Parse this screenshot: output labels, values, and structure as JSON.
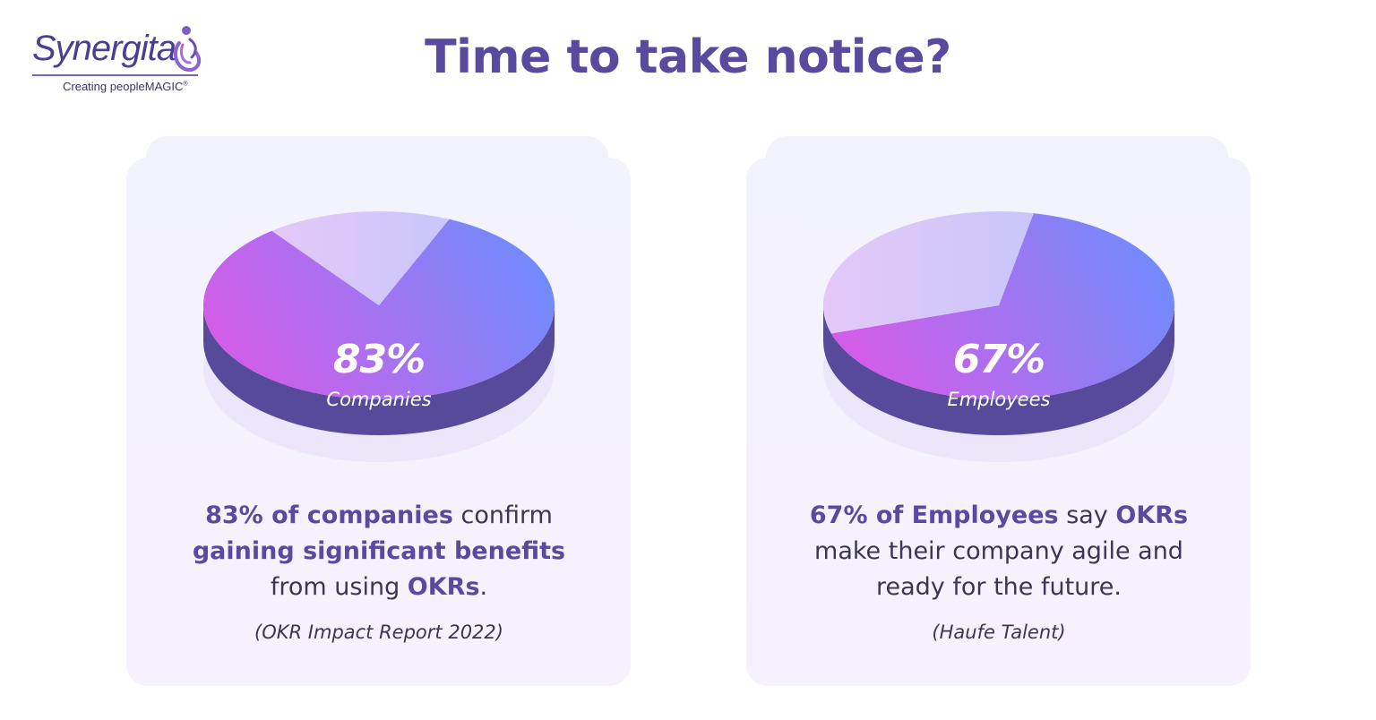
{
  "logo": {
    "name": "Synergita",
    "tagline": "Creating peopleMAGIC",
    "trademark": "®"
  },
  "title": "Time to take notice?",
  "colors": {
    "title": "#5a4a9f",
    "pie_side": "#574a9b",
    "pie_remainder": "#c9c6fb",
    "gradient_start": "#d45ce8",
    "gradient_end": "#6f8cfb"
  },
  "chart_data": [
    {
      "type": "pie",
      "title": "",
      "slices": [
        {
          "label": "Companies",
          "value": 83
        },
        {
          "label": "",
          "value": 17
        }
      ],
      "center_value": "83%",
      "center_label": "Companies"
    },
    {
      "type": "pie",
      "title": "",
      "slices": [
        {
          "label": "Employees",
          "value": 67
        },
        {
          "label": "",
          "value": 33
        }
      ],
      "center_value": "67%",
      "center_label": "Employees"
    }
  ],
  "cards": [
    {
      "desc_1_bold": "83% of companies",
      "desc_1_rest": " confirm",
      "desc_2_bold": "gaining significant benefits",
      "desc_3_pre": "from using ",
      "desc_3_bold": "OKRs",
      "desc_3_post": ".",
      "source": "(OKR Impact Report 2022)"
    },
    {
      "desc_1_bold": "67% of Employees",
      "desc_1_mid": " say ",
      "desc_1_bold2": "OKRs",
      "desc_2": "make their company agile and",
      "desc_3": "ready for the future.",
      "source": "(Haufe Talent)"
    }
  ]
}
